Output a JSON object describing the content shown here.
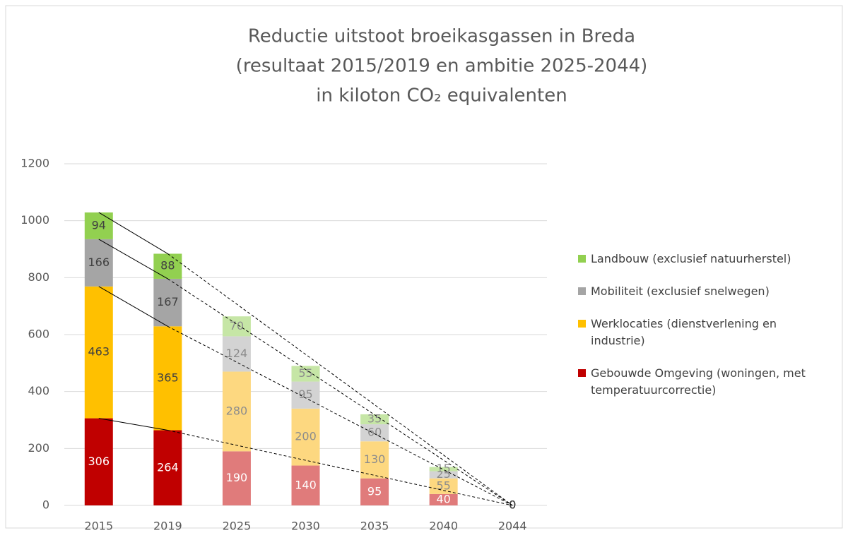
{
  "chart_data": {
    "type": "stacked-bar",
    "title": [
      "Reductie uitstoot broeikasgassen in Breda",
      "(resultaat 2015/2019 en ambitie 2025-2044)",
      "in kiloton CO₂ equivalenten"
    ],
    "categories": [
      "2015",
      "2019",
      "2025",
      "2030",
      "2035",
      "2040",
      "2044"
    ],
    "series": [
      {
        "name": "Gebouwde Omgeving (woningen, met temperatuurcorrectie)",
        "color": "#c00000",
        "colors": [
          "#c00000",
          "#c00000",
          "#e07b7b",
          "#e07b7b",
          "#e07b7b",
          "#e07b7b",
          "#e07b7b"
        ],
        "values": [
          306,
          264,
          190,
          140,
          95,
          40,
          0
        ]
      },
      {
        "name": "Werklocaties (dienstverlening en industrie)",
        "color": "#ffc000",
        "colors": [
          "#ffc000",
          "#ffc000",
          "#fdd880",
          "#fdd880",
          "#fdd880",
          "#fdd880",
          "#fdd880"
        ],
        "values": [
          463,
          365,
          280,
          200,
          130,
          55,
          0
        ]
      },
      {
        "name": "Mobiliteit (exclusief snelwegen)",
        "color": "#a5a5a5",
        "colors": [
          "#a5a5a5",
          "#a5a5a5",
          "#d3d3d3",
          "#d3d3d3",
          "#d3d3d3",
          "#d3d3d3",
          "#d3d3d3"
        ],
        "values": [
          166,
          167,
          124,
          95,
          60,
          25,
          0
        ]
      },
      {
        "name": "Landbouw (exclusief natuurherstel)",
        "color": "#92d050",
        "colors": [
          "#92d050",
          "#92d050",
          "#c6e6a6",
          "#c6e6a6",
          "#c6e6a6",
          "#c6e6a6",
          "#c6e6a6"
        ],
        "values": [
          94,
          88,
          70,
          55,
          35,
          15,
          0
        ]
      }
    ],
    "ylim": [
      0,
      1200
    ],
    "yticks": [
      0,
      200,
      400,
      600,
      800,
      1000,
      1200
    ],
    "grid": true
  }
}
